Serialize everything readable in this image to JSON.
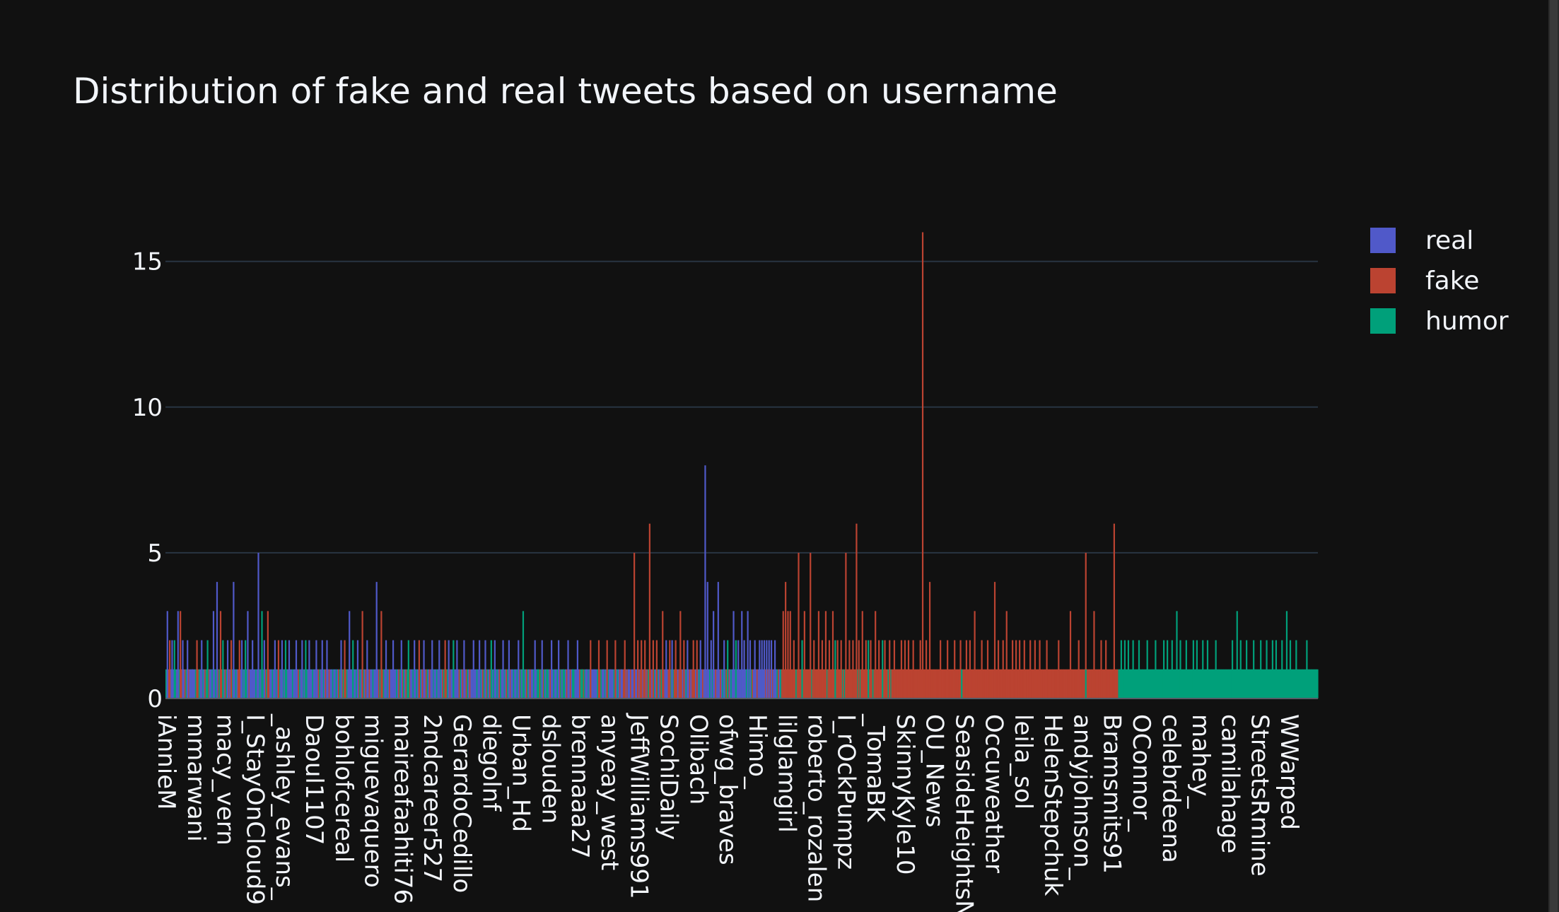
{
  "chart_data": {
    "type": "bar",
    "barmode": "stack",
    "title": "Distribution of fake and real tweets based on username",
    "xlabel": "",
    "ylabel": "",
    "ylim": [
      0,
      16.4
    ],
    "yticks": [
      0,
      5,
      10,
      15
    ],
    "grid": true,
    "legend_position": "top-right",
    "legend": [
      {
        "name": "real",
        "color": "#5059c9"
      },
      {
        "name": "fake",
        "color": "#bb4331"
      },
      {
        "name": "humor",
        "color": "#00a07a"
      }
    ],
    "x_tick_labels": [
      "iAnnieM",
      "mmarwani",
      "macy_vern",
      "I_StayOnCloud9",
      "_ashley_evans_",
      "Daoul1107",
      "bohlofcereal",
      "miguevaquero",
      "maireafaahiti76",
      "2ndcareer527",
      "GerardoCedillo",
      "diegolnf",
      "Urban_Hd",
      "dslouden",
      "brennaaa27",
      "anyeay_west",
      "JeffWilliams991",
      "SochiDaily",
      "Olibach",
      "ofwg_braves",
      "Himo_",
      "lilglamgirl",
      "roberto_rozalen",
      "I_rOckPumpz",
      "_TomaBK",
      "SkinnyKyle10",
      "OU_News",
      "SeasideHeightsNJ",
      "Occuweather",
      "leila_sol",
      "HelenStepchuk",
      "andyjohnson_",
      "Bramsmits91",
      "OConnor_",
      "celebrdeena",
      "mahey_",
      "camilahage",
      "StreetsRmine",
      "WWarped"
    ],
    "segments": [
      {
        "series": "mixed",
        "x_start": 0,
        "x_end": 140,
        "base": 1,
        "spike_color": "#5059c9",
        "spikes": [
          [
            1,
            3
          ],
          [
            5,
            2
          ],
          [
            10,
            3
          ],
          [
            14,
            2
          ],
          [
            18,
            2
          ],
          [
            22,
            1
          ],
          [
            30,
            2
          ],
          [
            40,
            3
          ],
          [
            43,
            4
          ],
          [
            52,
            2
          ],
          [
            57,
            4
          ],
          [
            64,
            2
          ],
          [
            69,
            3
          ],
          [
            73,
            2
          ],
          [
            78,
            5
          ],
          [
            83,
            2
          ],
          [
            92,
            2
          ],
          [
            98,
            2
          ],
          [
            104,
            2
          ],
          [
            110,
            2
          ],
          [
            115,
            2
          ],
          [
            121,
            2
          ],
          [
            127,
            2
          ],
          [
            132,
            2
          ],
          [
            136,
            2
          ]
        ]
      },
      {
        "series": "mixed",
        "x_start": 0,
        "x_end": 140,
        "base": 0,
        "spike_color": "#bb4331",
        "spikes": [
          [
            3,
            2
          ],
          [
            12,
            3
          ],
          [
            26,
            2
          ],
          [
            46,
            3
          ],
          [
            55,
            2
          ],
          [
            62,
            2
          ],
          [
            86,
            3
          ],
          [
            95,
            2
          ]
        ]
      },
      {
        "series": "mixed",
        "x_start": 0,
        "x_end": 140,
        "base": 0,
        "spike_color": "#00a07a",
        "spikes": [
          [
            7,
            2
          ],
          [
            35,
            2
          ],
          [
            48,
            2
          ],
          [
            67,
            2
          ],
          [
            81,
            3
          ],
          [
            101,
            2
          ],
          [
            118,
            2
          ]
        ]
      },
      {
        "series": "mixed",
        "x_start": 140,
        "x_end": 305,
        "base": 1,
        "spike_color": "#5059c9",
        "spikes": [
          [
            148,
            2
          ],
          [
            155,
            3
          ],
          [
            162,
            2
          ],
          [
            170,
            2
          ],
          [
            178,
            4
          ],
          [
            186,
            2
          ],
          [
            192,
            2
          ],
          [
            199,
            2
          ],
          [
            210,
            2
          ],
          [
            218,
            2
          ],
          [
            225,
            2
          ],
          [
            231,
            2
          ],
          [
            239,
            2
          ],
          [
            246,
            2
          ],
          [
            252,
            2
          ],
          [
            260,
            2
          ],
          [
            265,
            2
          ],
          [
            270,
            2
          ],
          [
            278,
            2
          ],
          [
            285,
            2
          ],
          [
            290,
            2
          ],
          [
            298,
            2
          ]
        ]
      },
      {
        "series": "mixed",
        "x_start": 140,
        "x_end": 305,
        "base": 0,
        "spike_color": "#bb4331",
        "spikes": [
          [
            151,
            2
          ],
          [
            166,
            3
          ],
          [
            182,
            3
          ],
          [
            214,
            2
          ],
          [
            236,
            2
          ]
        ]
      },
      {
        "series": "mixed",
        "x_start": 140,
        "x_end": 305,
        "base": 0,
        "spike_color": "#00a07a",
        "spikes": [
          [
            158,
            2
          ],
          [
            205,
            2
          ],
          [
            243,
            2
          ],
          [
            275,
            2
          ],
          [
            302,
            3
          ]
        ]
      },
      {
        "series": "mixed",
        "x_start": 305,
        "x_end": 420,
        "base": 1,
        "spike_color": "#5059c9",
        "spikes": [
          [
            312,
            2
          ],
          [
            318,
            2
          ],
          [
            326,
            2
          ],
          [
            332,
            2
          ],
          [
            340,
            2
          ],
          [
            348,
            2
          ],
          [
            356,
            1
          ],
          [
            362,
            1
          ],
          [
            370,
            1
          ],
          [
            376,
            1
          ],
          [
            385,
            1
          ],
          [
            391,
            1
          ]
        ]
      },
      {
        "series": "mixed",
        "x_start": 305,
        "x_end": 420,
        "base": 0,
        "spike_color": "#bb4331",
        "spikes": [
          [
            359,
            2
          ],
          [
            366,
            2
          ],
          [
            373,
            2
          ],
          [
            380,
            2
          ],
          [
            388,
            2
          ],
          [
            396,
            5
          ],
          [
            399,
            2
          ],
          [
            402,
            2
          ],
          [
            405,
            2
          ],
          [
            409,
            6
          ],
          [
            412,
            2
          ],
          [
            415,
            2
          ]
        ]
      },
      {
        "series": "mixed",
        "x_start": 305,
        "x_end": 420,
        "base": 0,
        "spike_color": "#00a07a",
        "spikes": [
          [
            315,
            1
          ],
          [
            322,
            1
          ],
          [
            336,
            1
          ],
          [
            344,
            1
          ],
          [
            352,
            1
          ]
        ]
      },
      {
        "series": "mixed",
        "x_start": 420,
        "x_end": 500,
        "base": 1,
        "spike_color": "#5059c9",
        "spikes": [
          [
            423,
            2
          ],
          [
            428,
            2
          ],
          [
            441,
            2
          ],
          [
            452,
            2
          ],
          [
            456,
            8
          ],
          [
            458,
            4
          ],
          [
            461,
            2
          ],
          [
            463,
            3
          ],
          [
            467,
            4
          ],
          [
            472,
            2
          ],
          [
            480,
            3
          ],
          [
            484,
            2
          ],
          [
            487,
            3
          ],
          [
            489,
            2
          ],
          [
            492,
            3
          ],
          [
            494,
            2
          ],
          [
            498,
            2
          ]
        ]
      },
      {
        "series": "mixed",
        "x_start": 420,
        "x_end": 500,
        "base": 0,
        "spike_color": "#bb4331",
        "spikes": [
          [
            420,
            3
          ],
          [
            426,
            2
          ],
          [
            431,
            2
          ],
          [
            435,
            3
          ],
          [
            438,
            2
          ],
          [
            446,
            2
          ],
          [
            449,
            2
          ]
        ]
      },
      {
        "series": "mixed",
        "x_start": 420,
        "x_end": 500,
        "base": 0,
        "spike_color": "#00a07a",
        "spikes": [
          [
            475,
            2
          ],
          [
            482,
            2
          ]
        ]
      },
      {
        "series": "mixed",
        "x_start": 500,
        "x_end": 520,
        "base": 1,
        "spike_color": "#5059c9",
        "spikes": [
          [
            502,
            2
          ],
          [
            504,
            2
          ],
          [
            506,
            2
          ],
          [
            508,
            2
          ],
          [
            510,
            2
          ],
          [
            512,
            2
          ],
          [
            515,
            2
          ]
        ]
      },
      {
        "series": "mixed",
        "x_start": 520,
        "x_end": 620,
        "base": 1,
        "spike_color": "#bb4331",
        "spikes": [
          [
            522,
            3
          ],
          [
            524,
            4
          ],
          [
            526,
            3
          ],
          [
            528,
            3
          ],
          [
            531,
            2
          ],
          [
            535,
            5
          ],
          [
            540,
            3
          ],
          [
            545,
            5
          ],
          [
            548,
            2
          ],
          [
            552,
            3
          ],
          [
            555,
            2
          ],
          [
            558,
            3
          ],
          [
            561,
            2
          ],
          [
            564,
            3
          ],
          [
            568,
            2
          ],
          [
            571,
            2
          ],
          [
            575,
            5
          ],
          [
            578,
            2
          ],
          [
            581,
            2
          ],
          [
            584,
            6
          ],
          [
            586,
            2
          ],
          [
            589,
            3
          ],
          [
            592,
            2
          ],
          [
            596,
            2
          ],
          [
            600,
            3
          ],
          [
            603,
            2
          ],
          [
            608,
            2
          ],
          [
            612,
            2
          ],
          [
            616,
            2
          ]
        ]
      },
      {
        "series": "mixed",
        "x_start": 520,
        "x_end": 620,
        "base": 0,
        "spike_color": "#00a07a",
        "spikes": [
          [
            538,
            2
          ],
          [
            566,
            2
          ],
          [
            594,
            2
          ],
          [
            606,
            2
          ]
        ]
      },
      {
        "series": "fake",
        "x_start": 620,
        "x_end": 800,
        "base": 1,
        "spike_color": "#bb4331",
        "spikes": [
          [
            622,
            2
          ],
          [
            625,
            2
          ],
          [
            628,
            2
          ],
          [
            632,
            2
          ],
          [
            638,
            2
          ],
          [
            640,
            16
          ],
          [
            643,
            2
          ],
          [
            646,
            4
          ],
          [
            655,
            2
          ],
          [
            661,
            2
          ],
          [
            667,
            2
          ],
          [
            672,
            2
          ],
          [
            677,
            2
          ],
          [
            680,
            2
          ],
          [
            684,
            3
          ],
          [
            690,
            2
          ],
          [
            695,
            2
          ],
          [
            701,
            4
          ],
          [
            704,
            2
          ],
          [
            708,
            2
          ],
          [
            711,
            3
          ],
          [
            716,
            2
          ],
          [
            719,
            2
          ],
          [
            722,
            2
          ],
          [
            726,
            2
          ],
          [
            731,
            2
          ],
          [
            735,
            2
          ],
          [
            739,
            2
          ],
          [
            745,
            2
          ],
          [
            755,
            2
          ],
          [
            765,
            3
          ],
          [
            772,
            2
          ],
          [
            778,
            5
          ],
          [
            785,
            3
          ],
          [
            791,
            2
          ],
          [
            795,
            2
          ]
        ]
      },
      {
        "series": "fake",
        "x_start": 620,
        "x_end": 800,
        "base": 0,
        "spike_color": "#00a07a",
        "spikes": [
          [
            673,
            1
          ],
          [
            778,
            1
          ]
        ]
      },
      {
        "series": "mixed",
        "x_start": 800,
        "x_end": 806,
        "base": 1,
        "spike_color": "#bb4331",
        "spikes": [
          [
            802,
            6
          ]
        ]
      },
      {
        "series": "humor",
        "x_start": 806,
        "x_end": 975,
        "base": 1,
        "spike_color": "#00a07a",
        "spikes": [
          [
            808,
            2
          ],
          [
            811,
            2
          ],
          [
            814,
            2
          ],
          [
            818,
            2
          ],
          [
            823,
            2
          ],
          [
            830,
            2
          ],
          [
            837,
            2
          ],
          [
            844,
            2
          ],
          [
            847,
            2
          ],
          [
            851,
            2
          ],
          [
            855,
            3
          ],
          [
            858,
            2
          ],
          [
            863,
            2
          ],
          [
            869,
            2
          ],
          [
            872,
            2
          ],
          [
            877,
            2
          ],
          [
            881,
            2
          ],
          [
            888,
            2
          ],
          [
            902,
            2
          ],
          [
            906,
            3
          ],
          [
            909,
            2
          ],
          [
            914,
            2
          ],
          [
            920,
            2
          ],
          [
            926,
            2
          ],
          [
            931,
            2
          ],
          [
            936,
            2
          ],
          [
            939,
            2
          ],
          [
            944,
            2
          ],
          [
            948,
            3
          ],
          [
            951,
            2
          ],
          [
            956,
            2
          ],
          [
            965,
            2
          ]
        ]
      }
    ]
  }
}
